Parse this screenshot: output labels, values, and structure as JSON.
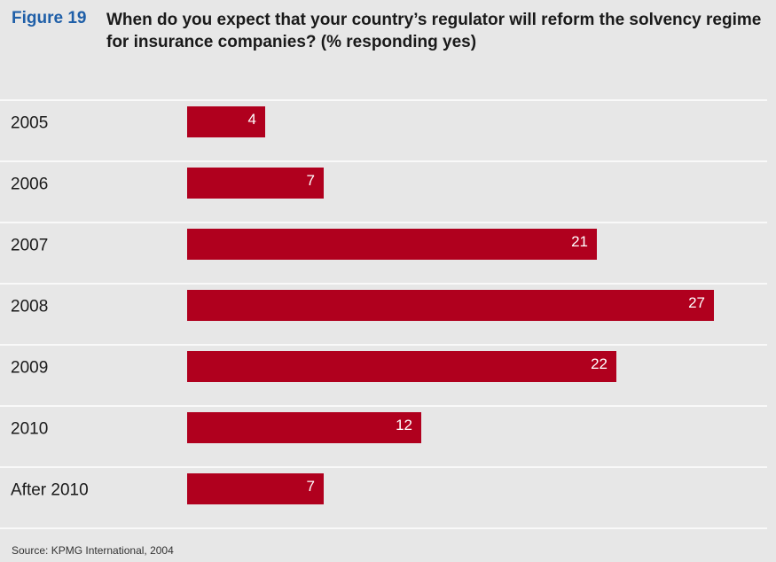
{
  "figure": {
    "number": "Figure 19",
    "title": "When do you expect that your country’s regulator will reform the solvency regime for insurance companies? (% responding yes)",
    "source": "Source: KPMG International, 2004"
  },
  "colors": {
    "bar": "#b0001e",
    "background": "#e7e7e7",
    "separator": "#ffffff",
    "accent": "#1f5fa8"
  },
  "chart_data": {
    "type": "bar",
    "orientation": "horizontal",
    "categories": [
      "2005",
      "2006",
      "2007",
      "2008",
      "2009",
      "2010",
      "After 2010"
    ],
    "values": [
      4,
      7,
      21,
      27,
      22,
      12,
      7
    ],
    "title": "When do you expect that your country’s regulator will reform the solvency regime for insurance companies? (% responding yes)",
    "xlabel": "",
    "ylabel": "",
    "xlim": [
      0,
      27
    ],
    "grid": false,
    "data_labels": true
  }
}
